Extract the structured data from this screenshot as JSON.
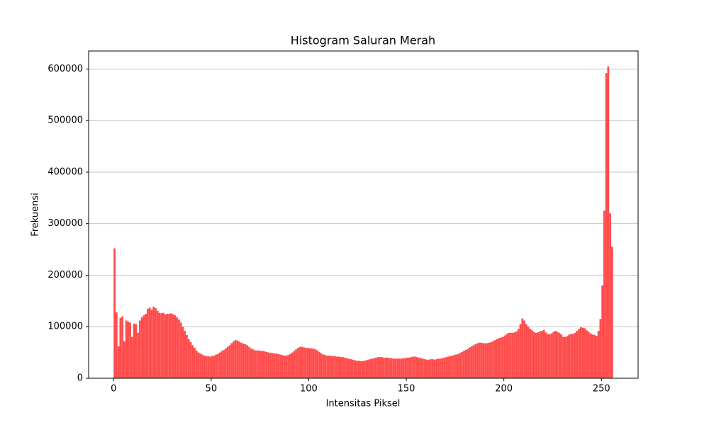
{
  "chart_data": {
    "type": "histogram",
    "title": "Histogram Saluran Merah",
    "x_label": "Intensitas Piksel",
    "y_label": "Frekuensi",
    "color": "#ff4d4d",
    "grid": "y",
    "xlim": [
      -12.8,
      268.8
    ],
    "ylim": [
      0,
      635000
    ],
    "xticks": [
      0,
      50,
      100,
      150,
      200,
      250
    ],
    "yticks": [
      0,
      100000,
      200000,
      300000,
      400000,
      500000,
      600000
    ],
    "bins": [
      0,
      1,
      2,
      3,
      4,
      5,
      6,
      7,
      8,
      9,
      10,
      11,
      12,
      13,
      14,
      15,
      16,
      17,
      18,
      19,
      20,
      21,
      22,
      23,
      24,
      25,
      26,
      27,
      28,
      29,
      30,
      31,
      32,
      33,
      34,
      35,
      36,
      37,
      38,
      39,
      40,
      41,
      42,
      43,
      44,
      45,
      46,
      47,
      48,
      49,
      50,
      51,
      52,
      53,
      54,
      55,
      56,
      57,
      58,
      59,
      60,
      61,
      62,
      63,
      64,
      65,
      66,
      67,
      68,
      69,
      70,
      71,
      72,
      73,
      74,
      75,
      76,
      77,
      78,
      79,
      80,
      81,
      82,
      83,
      84,
      85,
      86,
      87,
      88,
      89,
      90,
      91,
      92,
      93,
      94,
      95,
      96,
      97,
      98,
      99,
      100,
      101,
      102,
      103,
      104,
      105,
      106,
      107,
      108,
      109,
      110,
      111,
      112,
      113,
      114,
      115,
      116,
      117,
      118,
      119,
      120,
      121,
      122,
      123,
      124,
      125,
      126,
      127,
      128,
      129,
      130,
      131,
      132,
      133,
      134,
      135,
      136,
      137,
      138,
      139,
      140,
      141,
      142,
      143,
      144,
      145,
      146,
      147,
      148,
      149,
      150,
      151,
      152,
      153,
      154,
      155,
      156,
      157,
      158,
      159,
      160,
      161,
      162,
      163,
      164,
      165,
      166,
      167,
      168,
      169,
      170,
      171,
      172,
      173,
      174,
      175,
      176,
      177,
      178,
      179,
      180,
      181,
      182,
      183,
      184,
      185,
      186,
      187,
      188,
      189,
      190,
      191,
      192,
      193,
      194,
      195,
      196,
      197,
      198,
      199,
      200,
      201,
      202,
      203,
      204,
      205,
      206,
      207,
      208,
      209,
      210,
      211,
      212,
      213,
      214,
      215,
      216,
      217,
      218,
      219,
      220,
      221,
      222,
      223,
      224,
      225,
      226,
      227,
      228,
      229,
      230,
      231,
      232,
      233,
      234,
      235,
      236,
      237,
      238,
      239,
      240,
      241,
      242,
      243,
      244,
      245,
      246,
      247,
      248,
      249,
      250,
      251,
      252,
      253,
      254,
      255,
      256
    ],
    "counts": [
      252000,
      128000,
      62000,
      117000,
      120000,
      72000,
      112000,
      110000,
      108000,
      80000,
      106000,
      105000,
      88000,
      112000,
      118000,
      122000,
      125000,
      135000,
      137000,
      133000,
      139000,
      136000,
      131000,
      127000,
      126000,
      127000,
      124000,
      125000,
      125000,
      126000,
      124000,
      122000,
      118000,
      114000,
      108000,
      100000,
      92000,
      84000,
      76000,
      70000,
      64000,
      59000,
      54000,
      50000,
      48000,
      46000,
      44000,
      43000,
      43000,
      42000,
      43000,
      44000,
      46000,
      47000,
      50000,
      53000,
      55000,
      58000,
      61000,
      64000,
      68000,
      72000,
      74000,
      73000,
      71000,
      69000,
      67000,
      66000,
      64000,
      61000,
      58000,
      56000,
      54000,
      54000,
      54000,
      53000,
      53000,
      52000,
      51000,
      50000,
      49000,
      49000,
      48000,
      48000,
      47000,
      46000,
      45000,
      44000,
      44000,
      45000,
      47000,
      50000,
      53000,
      56000,
      59000,
      61000,
      61000,
      60000,
      59000,
      59000,
      58000,
      58000,
      57000,
      56000,
      54000,
      51000,
      48000,
      46000,
      45000,
      44000,
      44000,
      43000,
      43000,
      43000,
      42000,
      42000,
      41000,
      41000,
      40000,
      39000,
      38000,
      37000,
      36000,
      35000,
      34000,
      34000,
      33000,
      33000,
      34000,
      35000,
      36000,
      37000,
      38000,
      39000,
      40000,
      41000,
      41000,
      41000,
      40000,
      40000,
      40000,
      39000,
      39000,
      38000,
      38000,
      38000,
      38000,
      38000,
      39000,
      39000,
      40000,
      40000,
      41000,
      42000,
      42000,
      41000,
      40000,
      39000,
      38000,
      37000,
      36000,
      36000,
      37000,
      37000,
      36000,
      37000,
      38000,
      38000,
      39000,
      40000,
      41000,
      42000,
      43000,
      44000,
      45000,
      46000,
      47000,
      49000,
      51000,
      53000,
      55000,
      57000,
      60000,
      62000,
      64000,
      66000,
      68000,
      69000,
      69000,
      68000,
      68000,
      68000,
      69000,
      70000,
      72000,
      74000,
      76000,
      78000,
      79000,
      80000,
      83000,
      86000,
      88000,
      88000,
      88000,
      89000,
      91000,
      96000,
      105000,
      116000,
      112000,
      105000,
      100000,
      96000,
      93000,
      90000,
      88000,
      89000,
      91000,
      92000,
      94000,
      89000,
      86000,
      85000,
      87000,
      90000,
      92000,
      90000,
      88000,
      85000,
      80000,
      80000,
      82000,
      85000,
      86000,
      86000,
      88000,
      92000,
      96000,
      99000,
      98000,
      97000,
      93000,
      90000,
      87000,
      85000,
      84000,
      82000,
      92000,
      115000,
      180000,
      325000,
      592000,
      605000,
      320000,
      255000
    ]
  }
}
